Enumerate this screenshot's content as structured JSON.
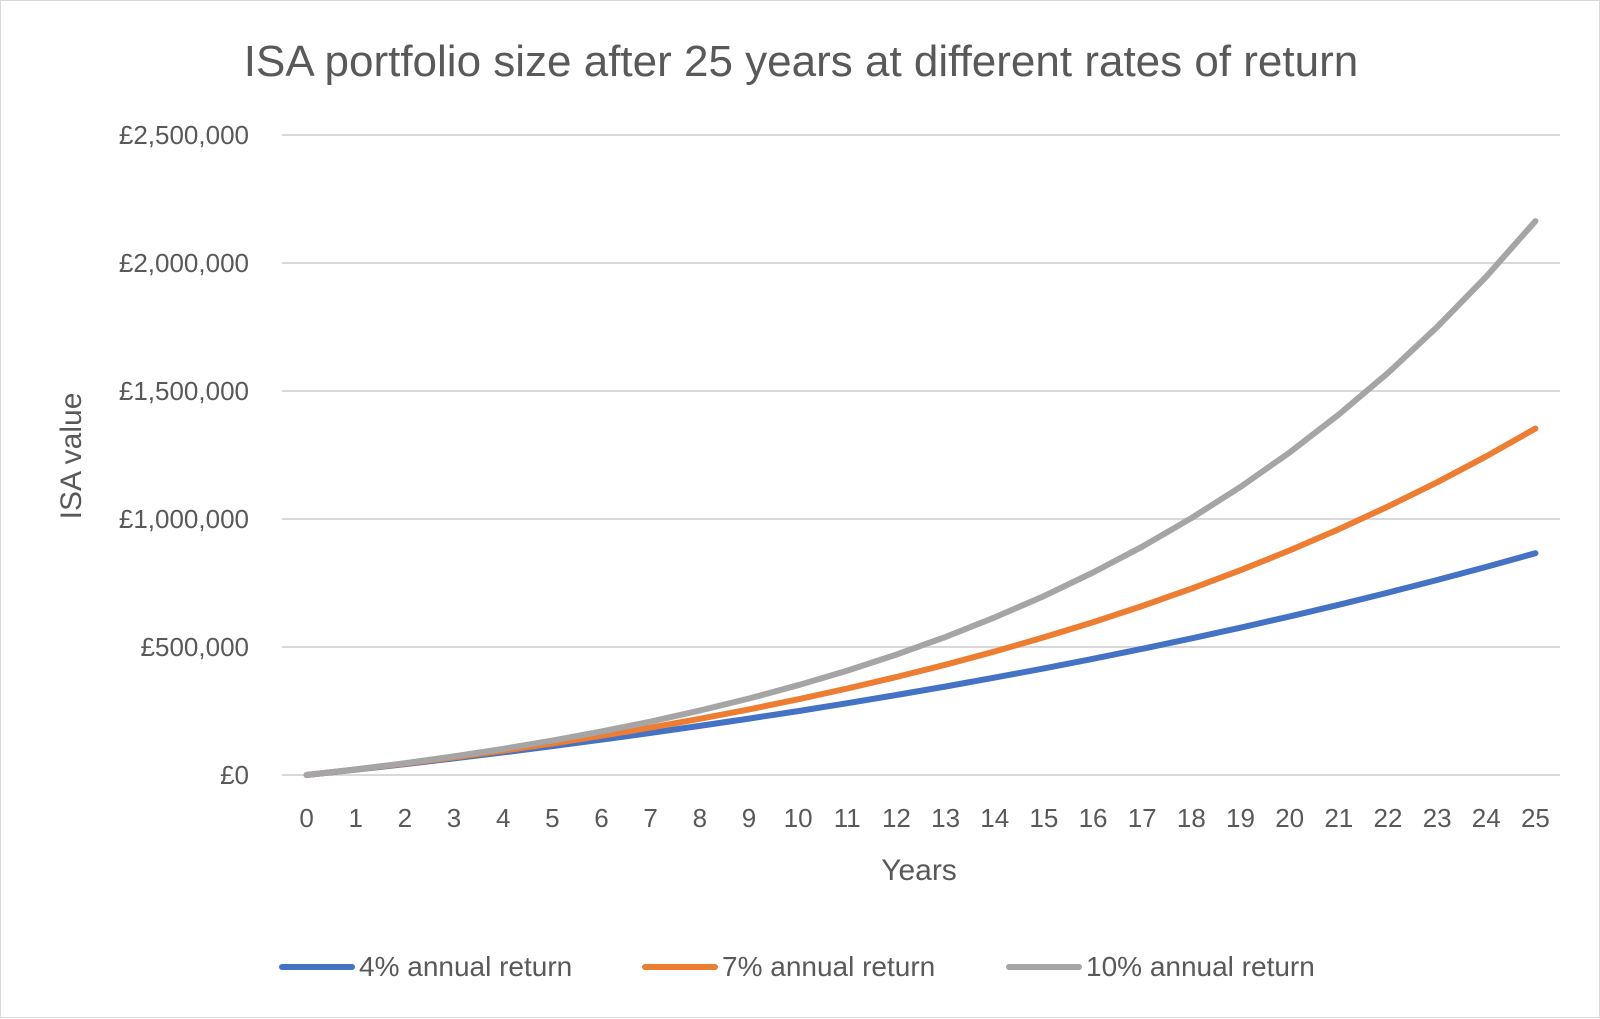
{
  "chart_data": {
    "type": "line",
    "title": "ISA portfolio size after 25 years at different rates of return",
    "xlabel": "Years",
    "ylabel": "ISA value",
    "categories": [
      "0",
      "1",
      "2",
      "3",
      "4",
      "5",
      "6",
      "7",
      "8",
      "9",
      "10",
      "11",
      "12",
      "13",
      "14",
      "15",
      "16",
      "17",
      "18",
      "19",
      "20",
      "21",
      "22",
      "23",
      "24",
      "25"
    ],
    "ylim": [
      0,
      2500000
    ],
    "yticks": [
      0,
      500000,
      1000000,
      1500000,
      2000000,
      2500000
    ],
    "ytick_labels": [
      "£0",
      "£500,000",
      "£1,000,000",
      "£1,500,000",
      "£2,000,000",
      "£2,500,000"
    ],
    "grid": true,
    "legend_position": "bottom",
    "series": [
      {
        "name": "4% annual return",
        "color": "#4472C4",
        "values": [
          0,
          20800,
          42432,
          64929,
          88327,
          112660,
          137967,
          164285,
          191657,
          220123,
          249729,
          280518,
          312539,
          345841,
          380474,
          416493,
          453952,
          492911,
          533427,
          575564,
          619387,
          664963,
          712361,
          761655,
          812922,
          866240
        ]
      },
      {
        "name": "7% annual return",
        "color": "#ED7D31",
        "values": [
          0,
          21400,
          44298,
          68799,
          95015,
          123066,
          153081,
          185197,
          219560,
          256329,
          295672,
          337769,
          382813,
          431010,
          482580,
          537761,
          596804,
          659980,
          727579,
          799909,
          877303,
          960114,
          1048722,
          1143532,
          1244979,
          1353527
        ]
      },
      {
        "name": "10% annual return",
        "color": "#A5A5A5",
        "values": [
          0,
          22000,
          46200,
          72820,
          102102,
          134312,
          169743,
          208718,
          251590,
          298748,
          350623,
          407686,
          470454,
          539500,
          615450,
          698995,
          790894,
          891983,
          1003182,
          1125500,
          1260050,
          1408055,
          1570860,
          1749946,
          1946941,
          2163635
        ]
      }
    ]
  }
}
